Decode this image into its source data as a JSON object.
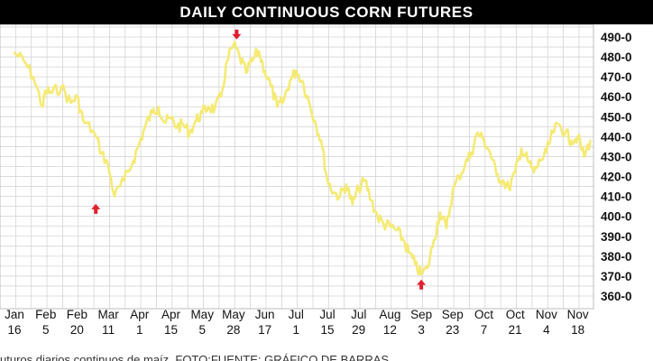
{
  "chart_data": {
    "type": "line",
    "title": "DAILY CONTINUOUS CORN FUTURES",
    "xlabel": "",
    "ylabel": "",
    "ylim": [
      360,
      495
    ],
    "grid": true,
    "legend": "none",
    "line_color": "#f5ea74",
    "arrow_color": "#e0202e",
    "x_ticks": [
      {
        "month": "Jan",
        "day": "16"
      },
      {
        "month": "Feb",
        "day": "5"
      },
      {
        "month": "Feb",
        "day": "20"
      },
      {
        "month": "Mar",
        "day": "11"
      },
      {
        "month": "Apr",
        "day": "1"
      },
      {
        "month": "Apr",
        "day": "15"
      },
      {
        "month": "May",
        "day": "5"
      },
      {
        "month": "May",
        "day": "28"
      },
      {
        "month": "Jun",
        "day": "17"
      },
      {
        "month": "Jul",
        "day": "1"
      },
      {
        "month": "Jul",
        "day": "15"
      },
      {
        "month": "Jul",
        "day": "29"
      },
      {
        "month": "Aug",
        "day": "12"
      },
      {
        "month": "Sep",
        "day": "3"
      },
      {
        "month": "Sep",
        "day": "23"
      },
      {
        "month": "Oct",
        "day": "7"
      },
      {
        "month": "Oct",
        "day": "21"
      },
      {
        "month": "Nov",
        "day": "4"
      },
      {
        "month": "Nov",
        "day": "18"
      }
    ],
    "y_ticks": [
      {
        "value": 490,
        "label": "490-0"
      },
      {
        "value": 480,
        "label": "480-0"
      },
      {
        "value": 470,
        "label": "470-0"
      },
      {
        "value": 460,
        "label": "460-0"
      },
      {
        "value": 450,
        "label": "450-0"
      },
      {
        "value": 440,
        "label": "440-0"
      },
      {
        "value": 430,
        "label": "430-0"
      },
      {
        "value": 420,
        "label": "420-0"
      },
      {
        "value": 410,
        "label": "410-0"
      },
      {
        "value": 400,
        "label": "400-0"
      },
      {
        "value": 390,
        "label": "390-0"
      },
      {
        "value": 380,
        "label": "380-0"
      },
      {
        "value": 370,
        "label": "370-0"
      },
      {
        "value": 360,
        "label": "360-0"
      }
    ],
    "series": [
      {
        "x": [
          0,
          0.3,
          0.6,
          0.9,
          1.0,
          1.2,
          1.5,
          1.8,
          2.0,
          2.2,
          2.5,
          2.8,
          3.0,
          3.2,
          3.5,
          3.8,
          4.0,
          4.2,
          4.4,
          4.6,
          4.8,
          5.0,
          5.2,
          5.4,
          5.6,
          5.8,
          6.0,
          6.2,
          6.4,
          6.6,
          6.8,
          7.0,
          7.2,
          7.4,
          7.6,
          7.8,
          8.0,
          8.2,
          8.4,
          8.6,
          8.8,
          9.0,
          9.2,
          9.4,
          9.6,
          9.8,
          10.0,
          10.2,
          10.4,
          10.6,
          10.8,
          11.0,
          11.2,
          11.4,
          11.6,
          11.8,
          12.0,
          12.2,
          12.4,
          12.6,
          12.8,
          13.0,
          13.2,
          13.4,
          13.6,
          13.8,
          14.0,
          14.2,
          14.4,
          14.6,
          14.8,
          15.0,
          15.2,
          15.4,
          15.6,
          15.8,
          16.0,
          16.2,
          16.4,
          16.6,
          16.8,
          17.0,
          17.2,
          17.4,
          17.6,
          17.8,
          18.0,
          18.2,
          18.4
        ],
        "values": [
          482,
          478,
          470,
          455,
          463,
          462,
          465,
          457,
          460,
          448,
          443,
          432,
          425,
          410,
          418,
          428,
          437,
          446,
          452,
          455,
          447,
          449,
          445,
          446,
          442,
          448,
          452,
          455,
          454,
          460,
          478,
          486,
          480,
          472,
          478,
          483,
          473,
          465,
          455,
          458,
          468,
          473,
          468,
          458,
          448,
          438,
          418,
          412,
          410,
          416,
          406,
          414,
          418,
          408,
          400,
          396,
          395,
          393,
          389,
          382,
          376,
          371,
          374,
          388,
          402,
          394,
          412,
          420,
          426,
          432,
          442,
          438,
          432,
          421,
          418,
          414,
          422,
          434,
          428,
          422,
          428,
          432,
          442,
          446,
          442,
          438,
          440,
          430,
          438
        ]
      }
    ],
    "annotations": [
      {
        "type": "arrow-up",
        "x": 2.6,
        "y": 404
      },
      {
        "type": "arrow-down",
        "x": 7.1,
        "y": 491
      },
      {
        "type": "arrow-up",
        "x": 13.0,
        "y": 366
      }
    ]
  },
  "caption": "uturos diarios continuos de maíz. FOTO:FUENTE: GRÁFICO DE BARRAS"
}
